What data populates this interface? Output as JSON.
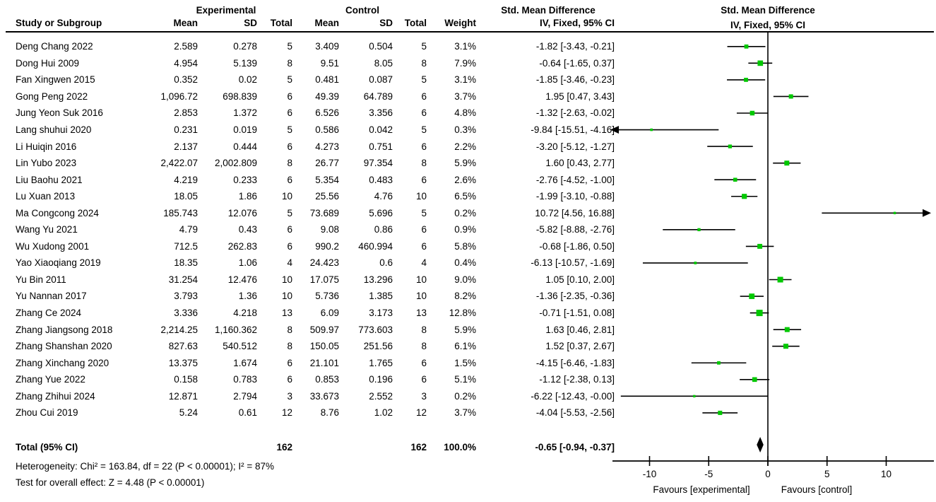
{
  "header": {
    "group_experimental": "Experimental",
    "group_control": "Control",
    "smd_text_col_title": "Std. Mean Difference",
    "smd_plot_col_title": "Std. Mean Difference",
    "smd_plot_col_subtitle": "IV, Fixed, 95% CI",
    "columns": [
      "Study or Subgroup",
      "Mean",
      "SD",
      "Total",
      "Mean",
      "SD",
      "Total",
      "Weight",
      "IV, Fixed, 95% CI"
    ]
  },
  "chart_data": {
    "type": "forest",
    "effect_measure": "Std. Mean Difference, IV, Fixed, 95% CI",
    "marker_color": "#00c800",
    "axis": {
      "ticks": [
        -10,
        -5,
        0,
        5,
        10
      ],
      "xmin": -13,
      "xmax": 13.5,
      "left_label": "Favours [experimental]",
      "right_label": "Favours [control]"
    },
    "studies": [
      {
        "name": "Deng Chang 2022",
        "e_mean": "2.589",
        "e_sd": "0.278",
        "e_total": "5",
        "c_mean": "3.409",
        "c_sd": "0.504",
        "c_total": "5",
        "weight": "3.1%",
        "ci": "-1.82 [-3.43, -0.21]",
        "est": -1.82,
        "lo": -3.43,
        "hi": -0.21
      },
      {
        "name": "Dong Hui 2009",
        "e_mean": "4.954",
        "e_sd": "5.139",
        "e_total": "8",
        "c_mean": "9.51",
        "c_sd": "8.05",
        "c_total": "8",
        "weight": "7.9%",
        "ci": "-0.64 [-1.65, 0.37]",
        "est": -0.64,
        "lo": -1.65,
        "hi": 0.37
      },
      {
        "name": "Fan Xingwen 2015",
        "e_mean": "0.352",
        "e_sd": "0.02",
        "e_total": "5",
        "c_mean": "0.481",
        "c_sd": "0.087",
        "c_total": "5",
        "weight": "3.1%",
        "ci": "-1.85 [-3.46, -0.23]",
        "est": -1.85,
        "lo": -3.46,
        "hi": -0.23
      },
      {
        "name": "Gong Peng 2022",
        "e_mean": "1,096.72",
        "e_sd": "698.839",
        "e_total": "6",
        "c_mean": "49.39",
        "c_sd": "64.789",
        "c_total": "6",
        "weight": "3.7%",
        "ci": "1.95 [0.47, 3.43]",
        "est": 1.95,
        "lo": 0.47,
        "hi": 3.43
      },
      {
        "name": "Jung Yeon Suk 2016",
        "e_mean": "2.853",
        "e_sd": "1.372",
        "e_total": "6",
        "c_mean": "6.526",
        "c_sd": "3.356",
        "c_total": "6",
        "weight": "4.8%",
        "ci": "-1.32 [-2.63, -0.02]",
        "est": -1.32,
        "lo": -2.63,
        "hi": -0.02
      },
      {
        "name": "Lang shuhui 2020",
        "e_mean": "0.231",
        "e_sd": "0.019",
        "e_total": "5",
        "c_mean": "0.586",
        "c_sd": "0.042",
        "c_total": "5",
        "weight": "0.3%",
        "ci": "-9.84 [-15.51, -4.16]",
        "est": -9.84,
        "lo": -15.51,
        "hi": -4.16
      },
      {
        "name": "Li Huiqin 2016",
        "e_mean": "2.137",
        "e_sd": "0.444",
        "e_total": "6",
        "c_mean": "4.273",
        "c_sd": "0.751",
        "c_total": "6",
        "weight": "2.2%",
        "ci": "-3.20 [-5.12, -1.27]",
        "est": -3.2,
        "lo": -5.12,
        "hi": -1.27
      },
      {
        "name": "Lin Yubo 2023",
        "e_mean": "2,422.07",
        "e_sd": "2,002.809",
        "e_total": "8",
        "c_mean": "26.77",
        "c_sd": "97.354",
        "c_total": "8",
        "weight": "5.9%",
        "ci": "1.60 [0.43, 2.77]",
        "est": 1.6,
        "lo": 0.43,
        "hi": 2.77
      },
      {
        "name": "Liu Baohu 2021",
        "e_mean": "4.219",
        "e_sd": "0.233",
        "e_total": "6",
        "c_mean": "5.354",
        "c_sd": "0.483",
        "c_total": "6",
        "weight": "2.6%",
        "ci": "-2.76 [-4.52, -1.00]",
        "est": -2.76,
        "lo": -4.52,
        "hi": -1.0
      },
      {
        "name": "Lu Xuan 2013",
        "e_mean": "18.05",
        "e_sd": "1.86",
        "e_total": "10",
        "c_mean": "25.56",
        "c_sd": "4.76",
        "c_total": "10",
        "weight": "6.5%",
        "ci": "-1.99 [-3.10, -0.88]",
        "est": -1.99,
        "lo": -3.1,
        "hi": -0.88
      },
      {
        "name": "Ma Congcong 2024",
        "e_mean": "185.743",
        "e_sd": "12.076",
        "e_total": "5",
        "c_mean": "73.689",
        "c_sd": "5.696",
        "c_total": "5",
        "weight": "0.2%",
        "ci": "10.72 [4.56, 16.88]",
        "est": 10.72,
        "lo": 4.56,
        "hi": 16.88
      },
      {
        "name": "Wang Yu 2021",
        "e_mean": "4.79",
        "e_sd": "0.43",
        "e_total": "6",
        "c_mean": "9.08",
        "c_sd": "0.86",
        "c_total": "6",
        "weight": "0.9%",
        "ci": "-5.82 [-8.88, -2.76]",
        "est": -5.82,
        "lo": -8.88,
        "hi": -2.76
      },
      {
        "name": "Wu Xudong 2001",
        "e_mean": "712.5",
        "e_sd": "262.83",
        "e_total": "6",
        "c_mean": "990.2",
        "c_sd": "460.994",
        "c_total": "6",
        "weight": "5.8%",
        "ci": "-0.68 [-1.86, 0.50]",
        "est": -0.68,
        "lo": -1.86,
        "hi": 0.5
      },
      {
        "name": "Yao Xiaoqiang 2019",
        "e_mean": "18.35",
        "e_sd": "1.06",
        "e_total": "4",
        "c_mean": "24.423",
        "c_sd": "0.6",
        "c_total": "4",
        "weight": "0.4%",
        "ci": "-6.13 [-10.57, -1.69]",
        "est": -6.13,
        "lo": -10.57,
        "hi": -1.69
      },
      {
        "name": "Yu Bin 2011",
        "e_mean": "31.254",
        "e_sd": "12.476",
        "e_total": "10",
        "c_mean": "17.075",
        "c_sd": "13.296",
        "c_total": "10",
        "weight": "9.0%",
        "ci": "1.05 [0.10, 2.00]",
        "est": 1.05,
        "lo": 0.1,
        "hi": 2.0
      },
      {
        "name": "Yu Nannan 2017",
        "e_mean": "3.793",
        "e_sd": "1.36",
        "e_total": "10",
        "c_mean": "5.736",
        "c_sd": "1.385",
        "c_total": "10",
        "weight": "8.2%",
        "ci": "-1.36 [-2.35, -0.36]",
        "est": -1.36,
        "lo": -2.35,
        "hi": -0.36
      },
      {
        "name": "Zhang Ce 2024",
        "e_mean": "3.336",
        "e_sd": "4.218",
        "e_total": "13",
        "c_mean": "6.09",
        "c_sd": "3.173",
        "c_total": "13",
        "weight": "12.8%",
        "ci": "-0.71 [-1.51, 0.08]",
        "est": -0.71,
        "lo": -1.51,
        "hi": 0.08
      },
      {
        "name": "Zhang Jiangsong 2018",
        "e_mean": "2,214.25",
        "e_sd": "1,160.362",
        "e_total": "8",
        "c_mean": "509.97",
        "c_sd": "773.603",
        "c_total": "8",
        "weight": "5.9%",
        "ci": "1.63 [0.46, 2.81]",
        "est": 1.63,
        "lo": 0.46,
        "hi": 2.81
      },
      {
        "name": "Zhang Shanshan 2020",
        "e_mean": "827.63",
        "e_sd": "540.512",
        "e_total": "8",
        "c_mean": "150.05",
        "c_sd": "251.56",
        "c_total": "8",
        "weight": "6.1%",
        "ci": "1.52 [0.37, 2.67]",
        "est": 1.52,
        "lo": 0.37,
        "hi": 2.67
      },
      {
        "name": "Zhang Xinchang 2020",
        "e_mean": "13.375",
        "e_sd": "1.674",
        "e_total": "6",
        "c_mean": "21.101",
        "c_sd": "1.765",
        "c_total": "6",
        "weight": "1.5%",
        "ci": "-4.15 [-6.46, -1.83]",
        "est": -4.15,
        "lo": -6.46,
        "hi": -1.83
      },
      {
        "name": "Zhang Yue 2022",
        "e_mean": "0.158",
        "e_sd": "0.783",
        "e_total": "6",
        "c_mean": "0.853",
        "c_sd": "0.196",
        "c_total": "6",
        "weight": "5.1%",
        "ci": "-1.12 [-2.38, 0.13]",
        "est": -1.12,
        "lo": -2.38,
        "hi": 0.13
      },
      {
        "name": "Zhang Zhihui 2024",
        "e_mean": "12.871",
        "e_sd": "2.794",
        "e_total": "3",
        "c_mean": "33.673",
        "c_sd": "2.552",
        "c_total": "3",
        "weight": "0.2%",
        "ci": "-6.22 [-12.43, -0.00]",
        "est": -6.22,
        "lo": -12.43,
        "hi": -0.0
      },
      {
        "name": "Zhou Cui 2019",
        "e_mean": "5.24",
        "e_sd": "0.61",
        "e_total": "12",
        "c_mean": "8.76",
        "c_sd": "1.02",
        "c_total": "12",
        "weight": "3.7%",
        "ci": "-4.04 [-5.53, -2.56]",
        "est": -4.04,
        "lo": -5.53,
        "hi": -2.56
      }
    ],
    "total": {
      "label": "Total (95% CI)",
      "e_total": "162",
      "c_total": "162",
      "weight": "100.0%",
      "ci": "-0.65 [-0.94, -0.37]",
      "est": -0.65,
      "lo": -0.94,
      "hi": -0.37
    },
    "footnotes": [
      "Heterogeneity: Chi² = 163.84, df = 22 (P < 0.00001); I² = 87%",
      "Test for overall effect: Z = 4.48 (P < 0.00001)"
    ]
  }
}
